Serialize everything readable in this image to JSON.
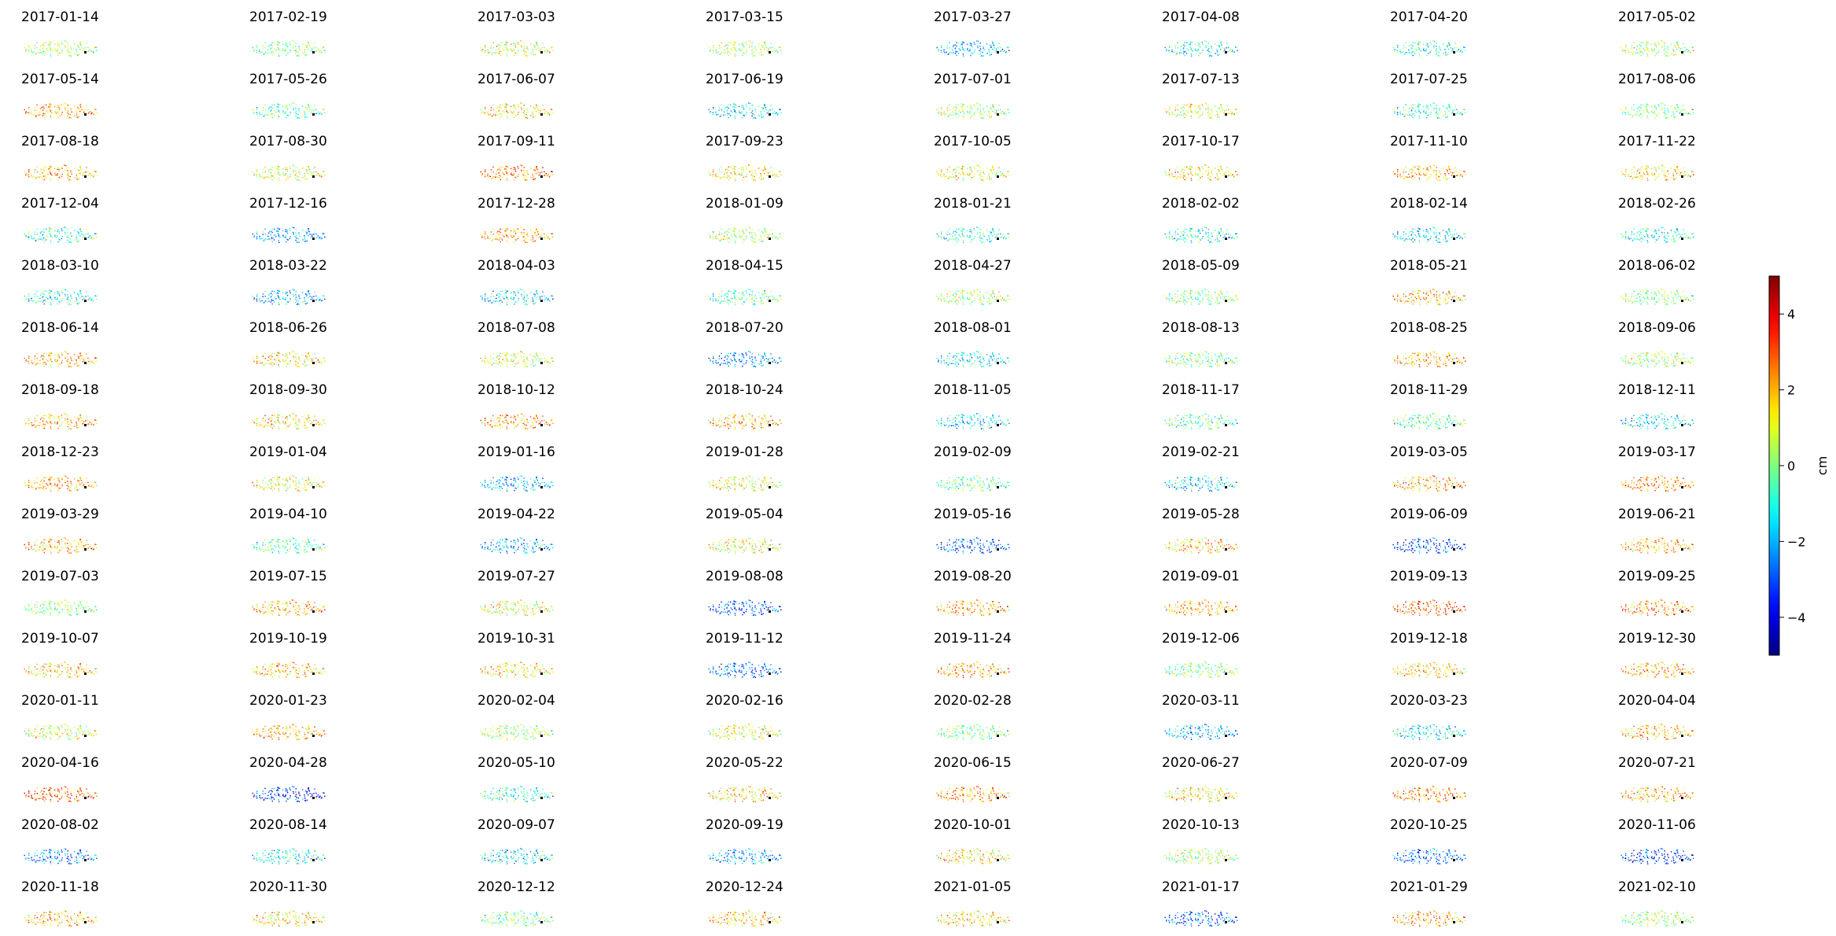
{
  "chart_data": {
    "type": "scatter",
    "layout": "small-multiples",
    "colormap": "jet",
    "colorbar": {
      "label": "cm",
      "range": [
        -5,
        5
      ],
      "ticks": [
        -4,
        -2,
        0,
        2,
        4
      ],
      "tick_labels": [
        "−4",
        "−2",
        "0",
        "2",
        "4"
      ]
    },
    "reference_point_color": "#000000",
    "dates": [
      "2017-01-14",
      "2017-02-19",
      "2017-03-03",
      "2017-03-15",
      "2017-03-27",
      "2017-04-08",
      "2017-04-20",
      "2017-05-02",
      "2017-05-14",
      "2017-05-26",
      "2017-06-07",
      "2017-06-19",
      "2017-07-01",
      "2017-07-13",
      "2017-07-25",
      "2017-08-06",
      "2017-08-18",
      "2017-08-30",
      "2017-09-11",
      "2017-09-23",
      "2017-10-05",
      "2017-10-17",
      "2017-11-10",
      "2017-11-22",
      "2017-12-04",
      "2017-12-16",
      "2017-12-28",
      "2018-01-09",
      "2018-01-21",
      "2018-02-02",
      "2018-02-14",
      "2018-02-26",
      "2018-03-10",
      "2018-03-22",
      "2018-04-03",
      "2018-04-15",
      "2018-04-27",
      "2018-05-09",
      "2018-05-21",
      "2018-06-02",
      "2018-06-14",
      "2018-06-26",
      "2018-07-08",
      "2018-07-20",
      "2018-08-01",
      "2018-08-13",
      "2018-08-25",
      "2018-09-06",
      "2018-09-18",
      "2018-09-30",
      "2018-10-12",
      "2018-10-24",
      "2018-11-05",
      "2018-11-17",
      "2018-11-29",
      "2018-12-11",
      "2018-12-23",
      "2019-01-04",
      "2019-01-16",
      "2019-01-28",
      "2019-02-09",
      "2019-02-21",
      "2019-03-05",
      "2019-03-17",
      "2019-03-29",
      "2019-04-10",
      "2019-04-22",
      "2019-05-04",
      "2019-05-16",
      "2019-05-28",
      "2019-06-09",
      "2019-06-21",
      "2019-07-03",
      "2019-07-15",
      "2019-07-27",
      "2019-08-08",
      "2019-08-20",
      "2019-09-01",
      "2019-09-13",
      "2019-09-25",
      "2019-10-07",
      "2019-10-19",
      "2019-10-31",
      "2019-11-12",
      "2019-11-24",
      "2019-12-06",
      "2019-12-18",
      "2019-12-30",
      "2020-01-11",
      "2020-01-23",
      "2020-02-04",
      "2020-02-16",
      "2020-02-28",
      "2020-03-11",
      "2020-03-23",
      "2020-04-04",
      "2020-04-16",
      "2020-04-28",
      "2020-05-10",
      "2020-05-22",
      "2020-06-15",
      "2020-06-27",
      "2020-07-09",
      "2020-07-21",
      "2020-08-02",
      "2020-08-14",
      "2020-09-07",
      "2020-09-19",
      "2020-10-01",
      "2020-10-13",
      "2020-10-25",
      "2020-11-06",
      "2020-11-18",
      "2020-11-30",
      "2020-12-12",
      "2020-12-24",
      "2021-01-05",
      "2021-01-17",
      "2021-01-29",
      "2021-02-10"
    ],
    "panel_mean_displacement_cm": [
      0.5,
      0,
      1,
      0.5,
      -2,
      -1,
      -1,
      0.5,
      2,
      -0.5,
      1.5,
      -1.5,
      0.5,
      1,
      -1,
      0,
      2,
      1,
      2.5,
      1.5,
      1,
      1.5,
      2,
      1.5,
      -1,
      -2,
      2,
      0.5,
      -1,
      -1,
      -1.5,
      -1,
      -1,
      -2,
      -1.5,
      -0.5,
      0.5,
      0,
      2,
      0,
      2,
      1.5,
      1,
      -2.5,
      -1.5,
      0,
      2,
      0.5,
      2,
      1.5,
      2,
      2,
      -1.5,
      -0.5,
      -0.5,
      -1.5,
      2,
      1,
      -2,
      1,
      -0.5,
      -1.5,
      2,
      2.5,
      2,
      -0.5,
      -2,
      1,
      -3,
      2,
      -3,
      2,
      0,
      2,
      1,
      -3,
      2,
      2,
      3,
      2.5,
      1.5,
      2,
      1.5,
      -3,
      2,
      0,
      1.5,
      2,
      1,
      2,
      0.5,
      1,
      0,
      -2,
      -1.5,
      2,
      3,
      -3.5,
      -1,
      1.5,
      2.5,
      1.5,
      2.5,
      2,
      -2.5,
      -1,
      -1.5,
      -2,
      1.5,
      0.5,
      -3,
      -3.5,
      2,
      1.5,
      0,
      2,
      1.5,
      -3,
      2,
      0.5
    ]
  }
}
